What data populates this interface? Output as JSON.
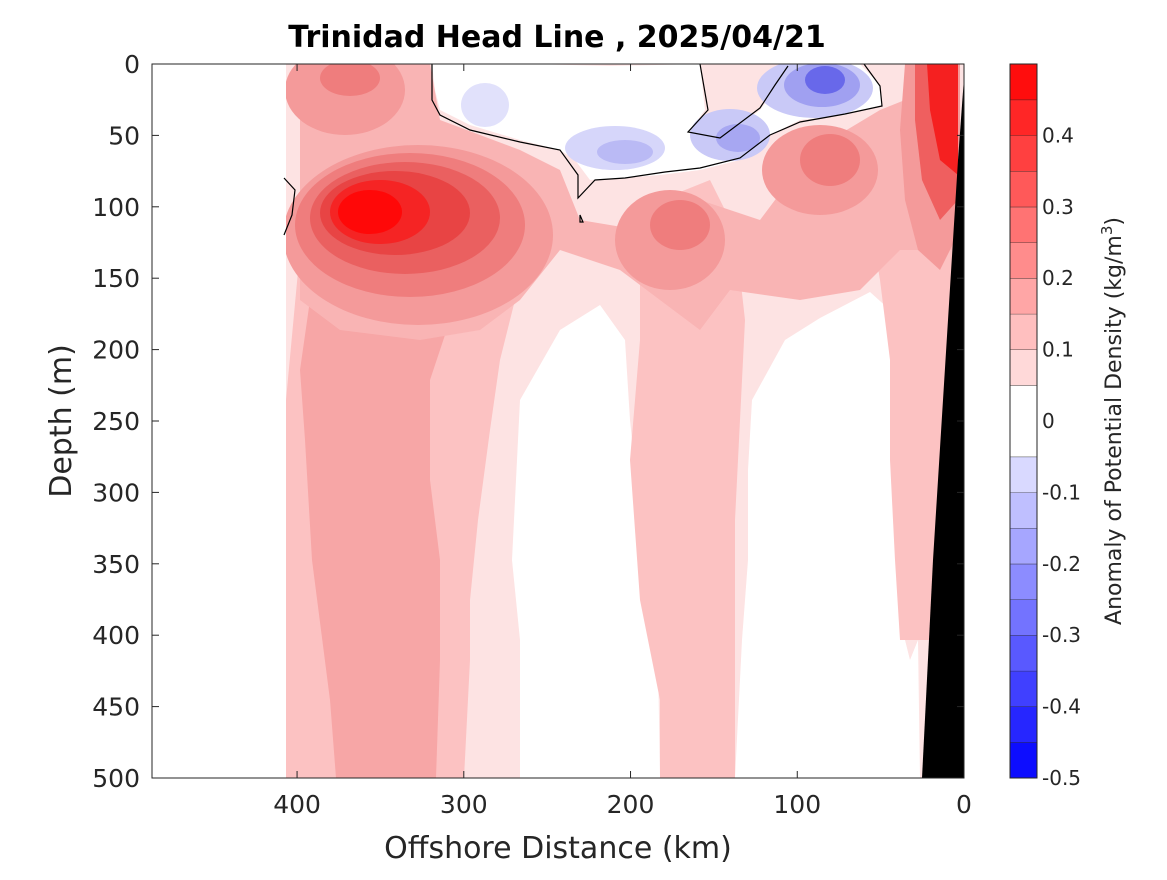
{
  "chart_data": {
    "type": "contour",
    "title": "Trinidad Head Line , 2025/04/21",
    "xlabel": "Offshore Distance (km)",
    "ylabel": "Depth (m)",
    "colorbar_label": "Anomaly of Potential Density (kg/m³)",
    "colorbar_label_main": "Anomaly of Potential Density (kg/m",
    "colorbar_label_sup": "3",
    "colorbar_label_end": ")",
    "xlim": [
      487,
      0
    ],
    "ylim": [
      500,
      0
    ],
    "x_reversed": true,
    "y_reversed": true,
    "x_ticks": [
      400,
      300,
      200,
      100,
      0
    ],
    "x_tick_labels": [
      "400",
      "300",
      "200",
      "100",
      "0"
    ],
    "y_ticks": [
      0,
      50,
      100,
      150,
      200,
      250,
      300,
      350,
      400,
      450,
      500
    ],
    "y_tick_labels": [
      "0",
      "50",
      "100",
      "150",
      "200",
      "250",
      "300",
      "350",
      "400",
      "450",
      "500"
    ],
    "clim": [
      -0.5,
      0.5
    ],
    "colorbar_ticks": [
      0.4,
      0.3,
      0.2,
      0.1,
      0,
      -0.1,
      -0.2,
      -0.3,
      -0.4,
      -0.5
    ],
    "colorbar_tick_labels": [
      "0.4",
      "0.3",
      "0.2",
      "0.1",
      "0",
      "-0.1",
      "-0.2",
      "-0.3",
      "-0.4",
      "-0.5"
    ],
    "colorbar_levels": [
      -0.5,
      -0.45,
      -0.4,
      -0.35,
      -0.3,
      -0.25,
      -0.2,
      -0.15,
      -0.1,
      -0.05,
      0.05,
      0.1,
      0.15,
      0.2,
      0.25,
      0.3,
      0.35,
      0.4,
      0.45,
      0.5
    ],
    "colormap": "blue-white-red",
    "colors": {
      "positive_max": "#ff0000",
      "negative_max": "#0000ff",
      "neutral": "#ffffff",
      "bathymetry": "#000000",
      "zero_contour": "#000000"
    },
    "data_extent_km": [
      410,
      0
    ],
    "features": [
      {
        "kind": "positive_anomaly_core",
        "x_km": 350,
        "depth_m": 105,
        "value": 0.45
      },
      {
        "kind": "positive_anomaly_core",
        "x_km": 15,
        "depth_m": 45,
        "value": 0.45
      },
      {
        "kind": "positive_anomaly",
        "x_km": 80,
        "depth_m": 75,
        "value": 0.3
      },
      {
        "kind": "positive_anomaly",
        "x_km": 165,
        "depth_m": 115,
        "value": 0.25
      },
      {
        "kind": "negative_anomaly_core",
        "x_km": 85,
        "depth_m": 15,
        "value": -0.25
      },
      {
        "kind": "negative_anomaly",
        "x_km": 200,
        "depth_m": 60,
        "value": -0.15
      },
      {
        "kind": "negative_anomaly",
        "x_km": 130,
        "depth_m": 55,
        "value": -0.15
      }
    ]
  }
}
